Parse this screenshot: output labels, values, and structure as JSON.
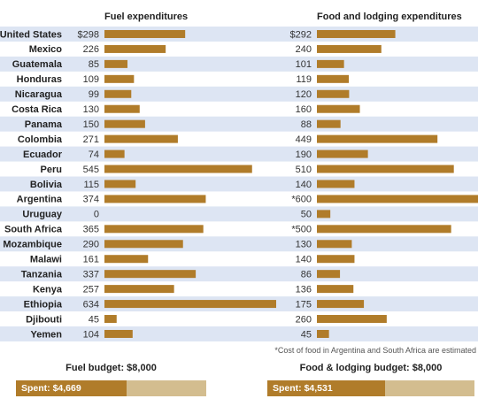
{
  "chart_data": [
    {
      "type": "bar",
      "orientation": "horizontal",
      "title": "Fuel expenditures",
      "categories": [
        "United States",
        "Mexico",
        "Guatemala",
        "Honduras",
        "Nicaragua",
        "Costa Rica",
        "Panama",
        "Colombia",
        "Ecuador",
        "Peru",
        "Bolivia",
        "Argentina",
        "Uruguay",
        "South Africa",
        "Mozambique",
        "Malawi",
        "Tanzania",
        "Kenya",
        "Ethiopia",
        "Djibouti",
        "Yemen"
      ],
      "values": [
        298,
        226,
        85,
        109,
        99,
        130,
        150,
        271,
        74,
        545,
        115,
        374,
        0,
        365,
        290,
        161,
        337,
        257,
        634,
        45,
        104
      ],
      "value_labels": [
        "$298",
        "226",
        "85",
        "109",
        "99",
        "130",
        "150",
        "271",
        "74",
        "545",
        "115",
        "374",
        "0",
        "365",
        "290",
        "161",
        "337",
        "257",
        "634",
        "45",
        "104"
      ],
      "bar_color": "#b07c2a"
    },
    {
      "type": "bar",
      "orientation": "horizontal",
      "title": "Food and lodging expenditures",
      "categories": [
        "United States",
        "Mexico",
        "Guatemala",
        "Honduras",
        "Nicaragua",
        "Costa Rica",
        "Panama",
        "Colombia",
        "Ecuador",
        "Peru",
        "Bolivia",
        "Argentina",
        "Uruguay",
        "South Africa",
        "Mozambique",
        "Malawi",
        "Tanzania",
        "Kenya",
        "Ethiopia",
        "Djibouti",
        "Yemen"
      ],
      "values": [
        292,
        240,
        101,
        119,
        120,
        160,
        88,
        449,
        190,
        510,
        140,
        600,
        50,
        500,
        130,
        140,
        86,
        136,
        175,
        260,
        45
      ],
      "value_labels": [
        "$292",
        "240",
        "101",
        "119",
        "120",
        "160",
        "88",
        "449",
        "190",
        "510",
        "140",
        "*600",
        "50",
        "*500",
        "130",
        "140",
        "86",
        "136",
        "175",
        "260",
        "45"
      ],
      "bar_color": "#b07c2a",
      "note": "*Cost of food in Argentina and South Africa are estimated"
    }
  ],
  "budgets": {
    "fuel": {
      "title": "Fuel budget: $8,000",
      "spent_label": "Spent: $4,669",
      "spent": 4669,
      "total": 8000
    },
    "food": {
      "title": "Food & lodging budget: $8,000",
      "spent_label": "Spent: $4,531",
      "spent": 4531,
      "total": 8000
    }
  },
  "colors": {
    "row_stripe": "#dde5f3",
    "bar": "#b07c2a",
    "budget_track": "#d3bd8f"
  }
}
